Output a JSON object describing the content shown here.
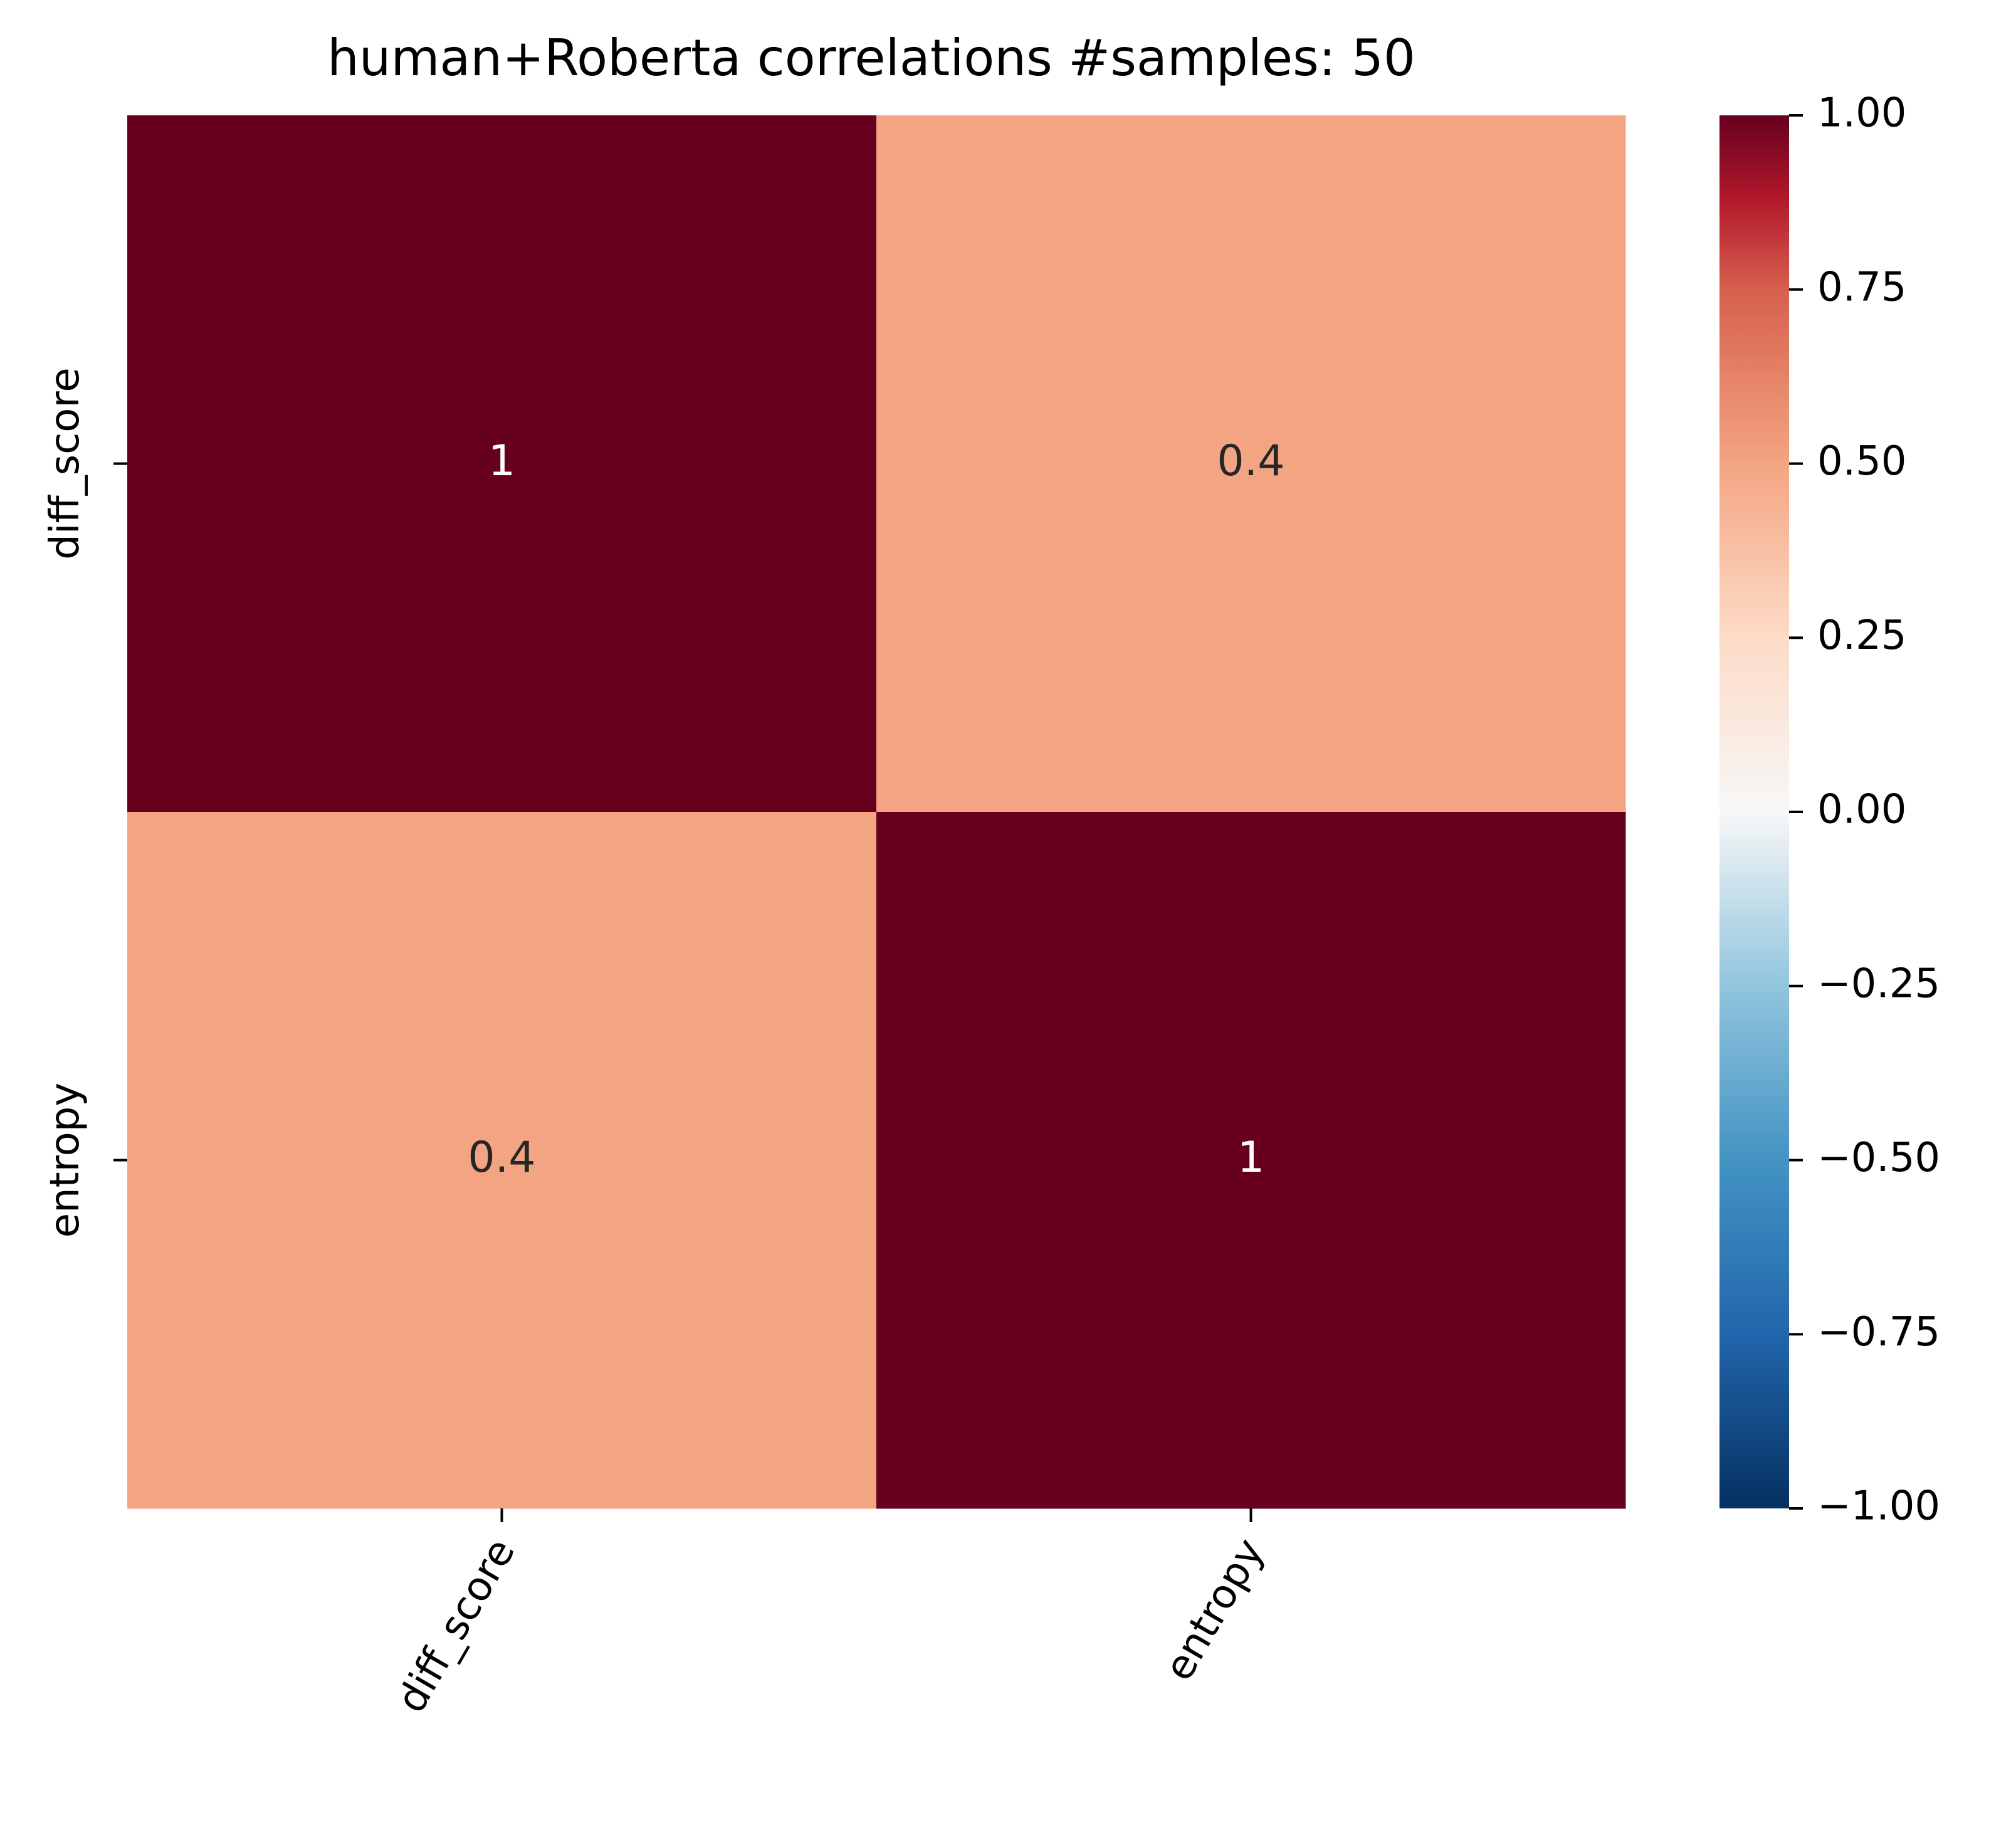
{
  "chart_data": {
    "type": "heatmap",
    "title": "human+Roberta correlations #samples: 50",
    "row_labels": [
      "diff_score",
      "entropy"
    ],
    "col_labels": [
      "diff_score",
      "entropy"
    ],
    "values": [
      [
        1,
        0.4
      ],
      [
        0.4,
        1
      ]
    ],
    "annotations": [
      [
        "1",
        "0.4"
      ],
      [
        "0.4",
        "1"
      ]
    ],
    "colormap": "RdBu_r",
    "vmin": -1,
    "vmax": 1,
    "colorbar_ticks": [
      "1.00",
      "0.75",
      "0.50",
      "0.25",
      "0.00",
      "−0.25",
      "−0.50",
      "−0.75",
      "−1.00"
    ],
    "colorbar_tick_values": [
      1,
      0.75,
      0.5,
      0.25,
      0,
      -0.25,
      -0.5,
      -0.75,
      -1
    ],
    "colors": {
      "high": "#67001f",
      "mid_high": "#f3a583",
      "neutral": "#f7f7f7",
      "low": "#053061"
    }
  }
}
